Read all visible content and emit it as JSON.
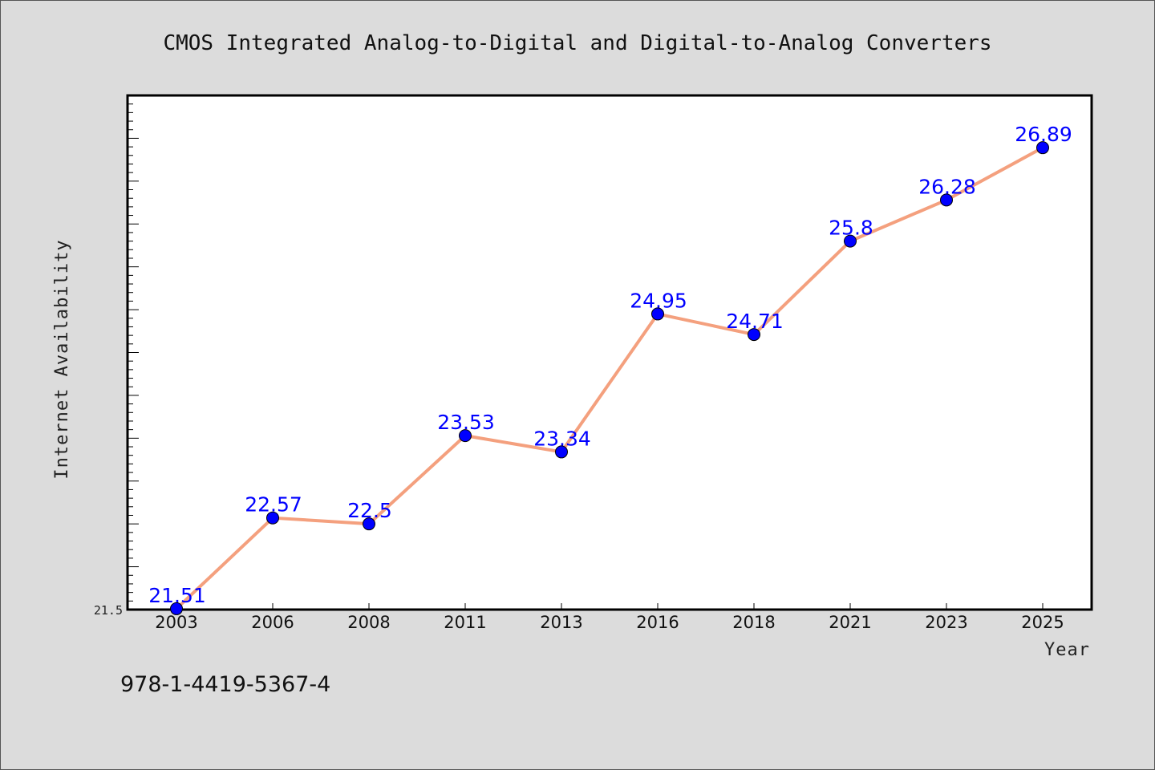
{
  "chart_data": {
    "type": "line",
    "title": "CMOS Integrated Analog-to-Digital and Digital-to-Analog Converters",
    "xlabel": "Year",
    "ylabel": "Internet Availability",
    "categories": [
      "2003",
      "2006",
      "2008",
      "2011",
      "2013",
      "2016",
      "2018",
      "2021",
      "2023",
      "2025"
    ],
    "series": [
      {
        "values": [
          21.51,
          22.57,
          22.5,
          23.53,
          23.34,
          24.95,
          24.71,
          25.8,
          26.28,
          26.89
        ],
        "labels": [
          "21.51",
          "22.57",
          "22.5",
          "23.53",
          "23.34",
          "24.95",
          "24.71",
          "25.8",
          "26.28",
          "26.89"
        ]
      }
    ],
    "ylim": [
      21.5,
      27.5
    ],
    "ytick_label": "21.5",
    "grid": false,
    "colors": {
      "line": "#f4a07e",
      "marker": "#0000ff",
      "data_label": "#0000ff",
      "plot_background": "#ffffff",
      "figure_background": "#dcdcdc"
    }
  },
  "footer_text": "978-1-4419-5367-4"
}
